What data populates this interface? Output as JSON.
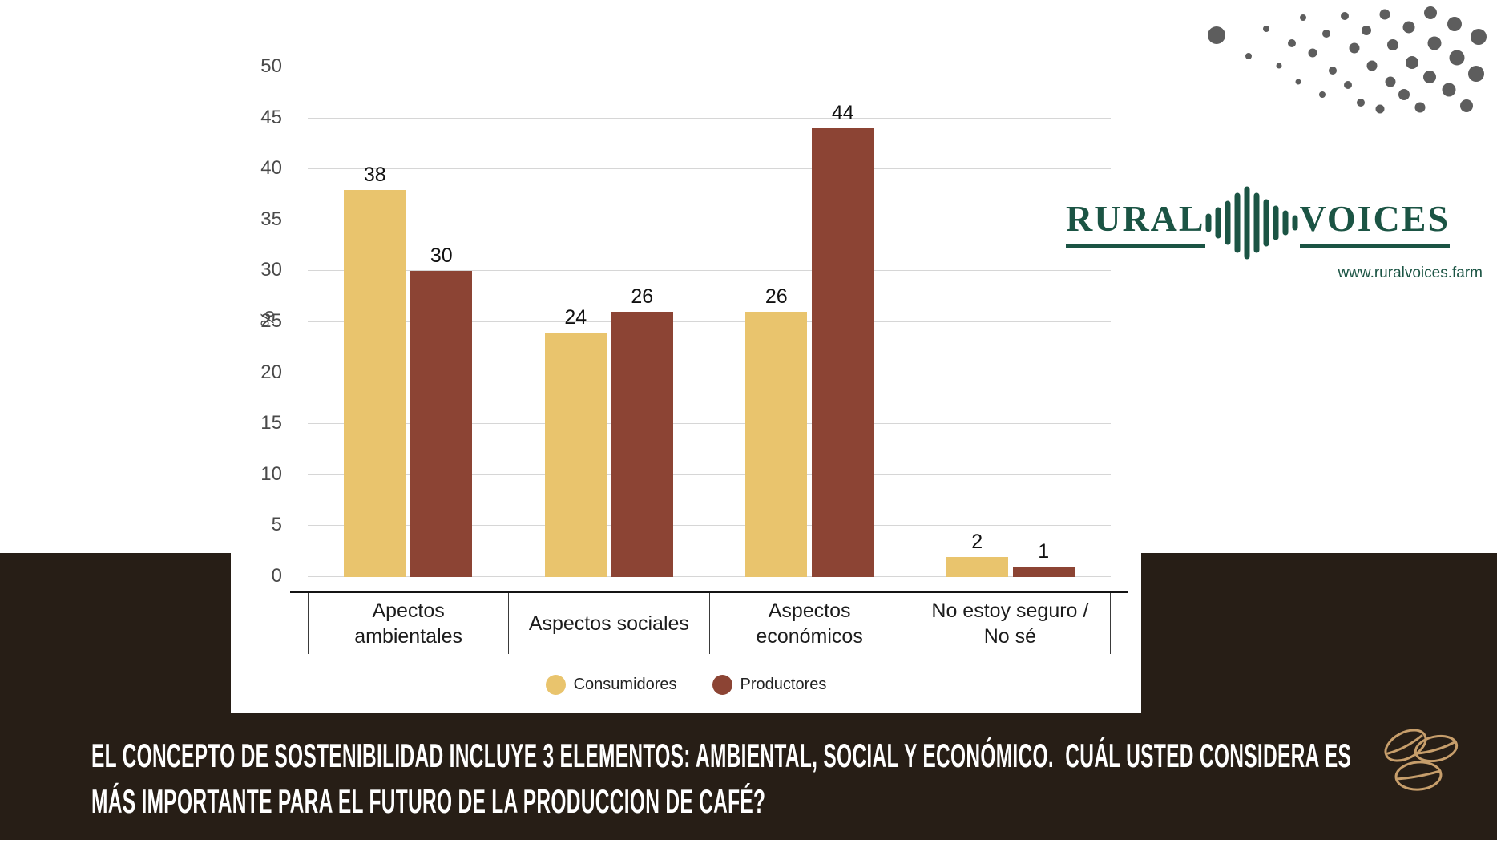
{
  "brand": {
    "name_left": "RURAL",
    "name_right": "VOICES",
    "url": "www.ruralvoices.farm",
    "green": "#1b5444"
  },
  "caption": {
    "line1": "EL CONCEPTO DE SOSTENIBILIDAD INCLUYE 3 ELEMENTOS: AMBIENTAL, SOCIAL Y ECONÓMICO.  CUÁL USTED CONSIDERA ES",
    "line2": "MÁS IMPORTANTE PARA EL FUTURO DE LA PRODUCCION DE CAFÉ?"
  },
  "chart_data": {
    "type": "bar",
    "title": "",
    "categories": [
      "Apectos\nambientales",
      "Aspectos sociales",
      "Aspectos\neconómicos",
      "No estoy seguro /\nNo sé"
    ],
    "series": [
      {
        "name": "Consumidores",
        "color": "#e9c46d",
        "values": [
          38,
          24,
          26,
          2
        ]
      },
      {
        "name": "Productores",
        "color": "#8c4434",
        "values": [
          30,
          26,
          44,
          1
        ]
      }
    ],
    "xlabel": "",
    "ylabel": "%",
    "ylim": [
      0,
      50
    ],
    "ytick_step": 5,
    "grid": true,
    "legend_position": "bottom"
  },
  "colors": {
    "band": "#271e16",
    "gridline": "#d6d6d6",
    "bean_icon": "#c79e6b"
  }
}
